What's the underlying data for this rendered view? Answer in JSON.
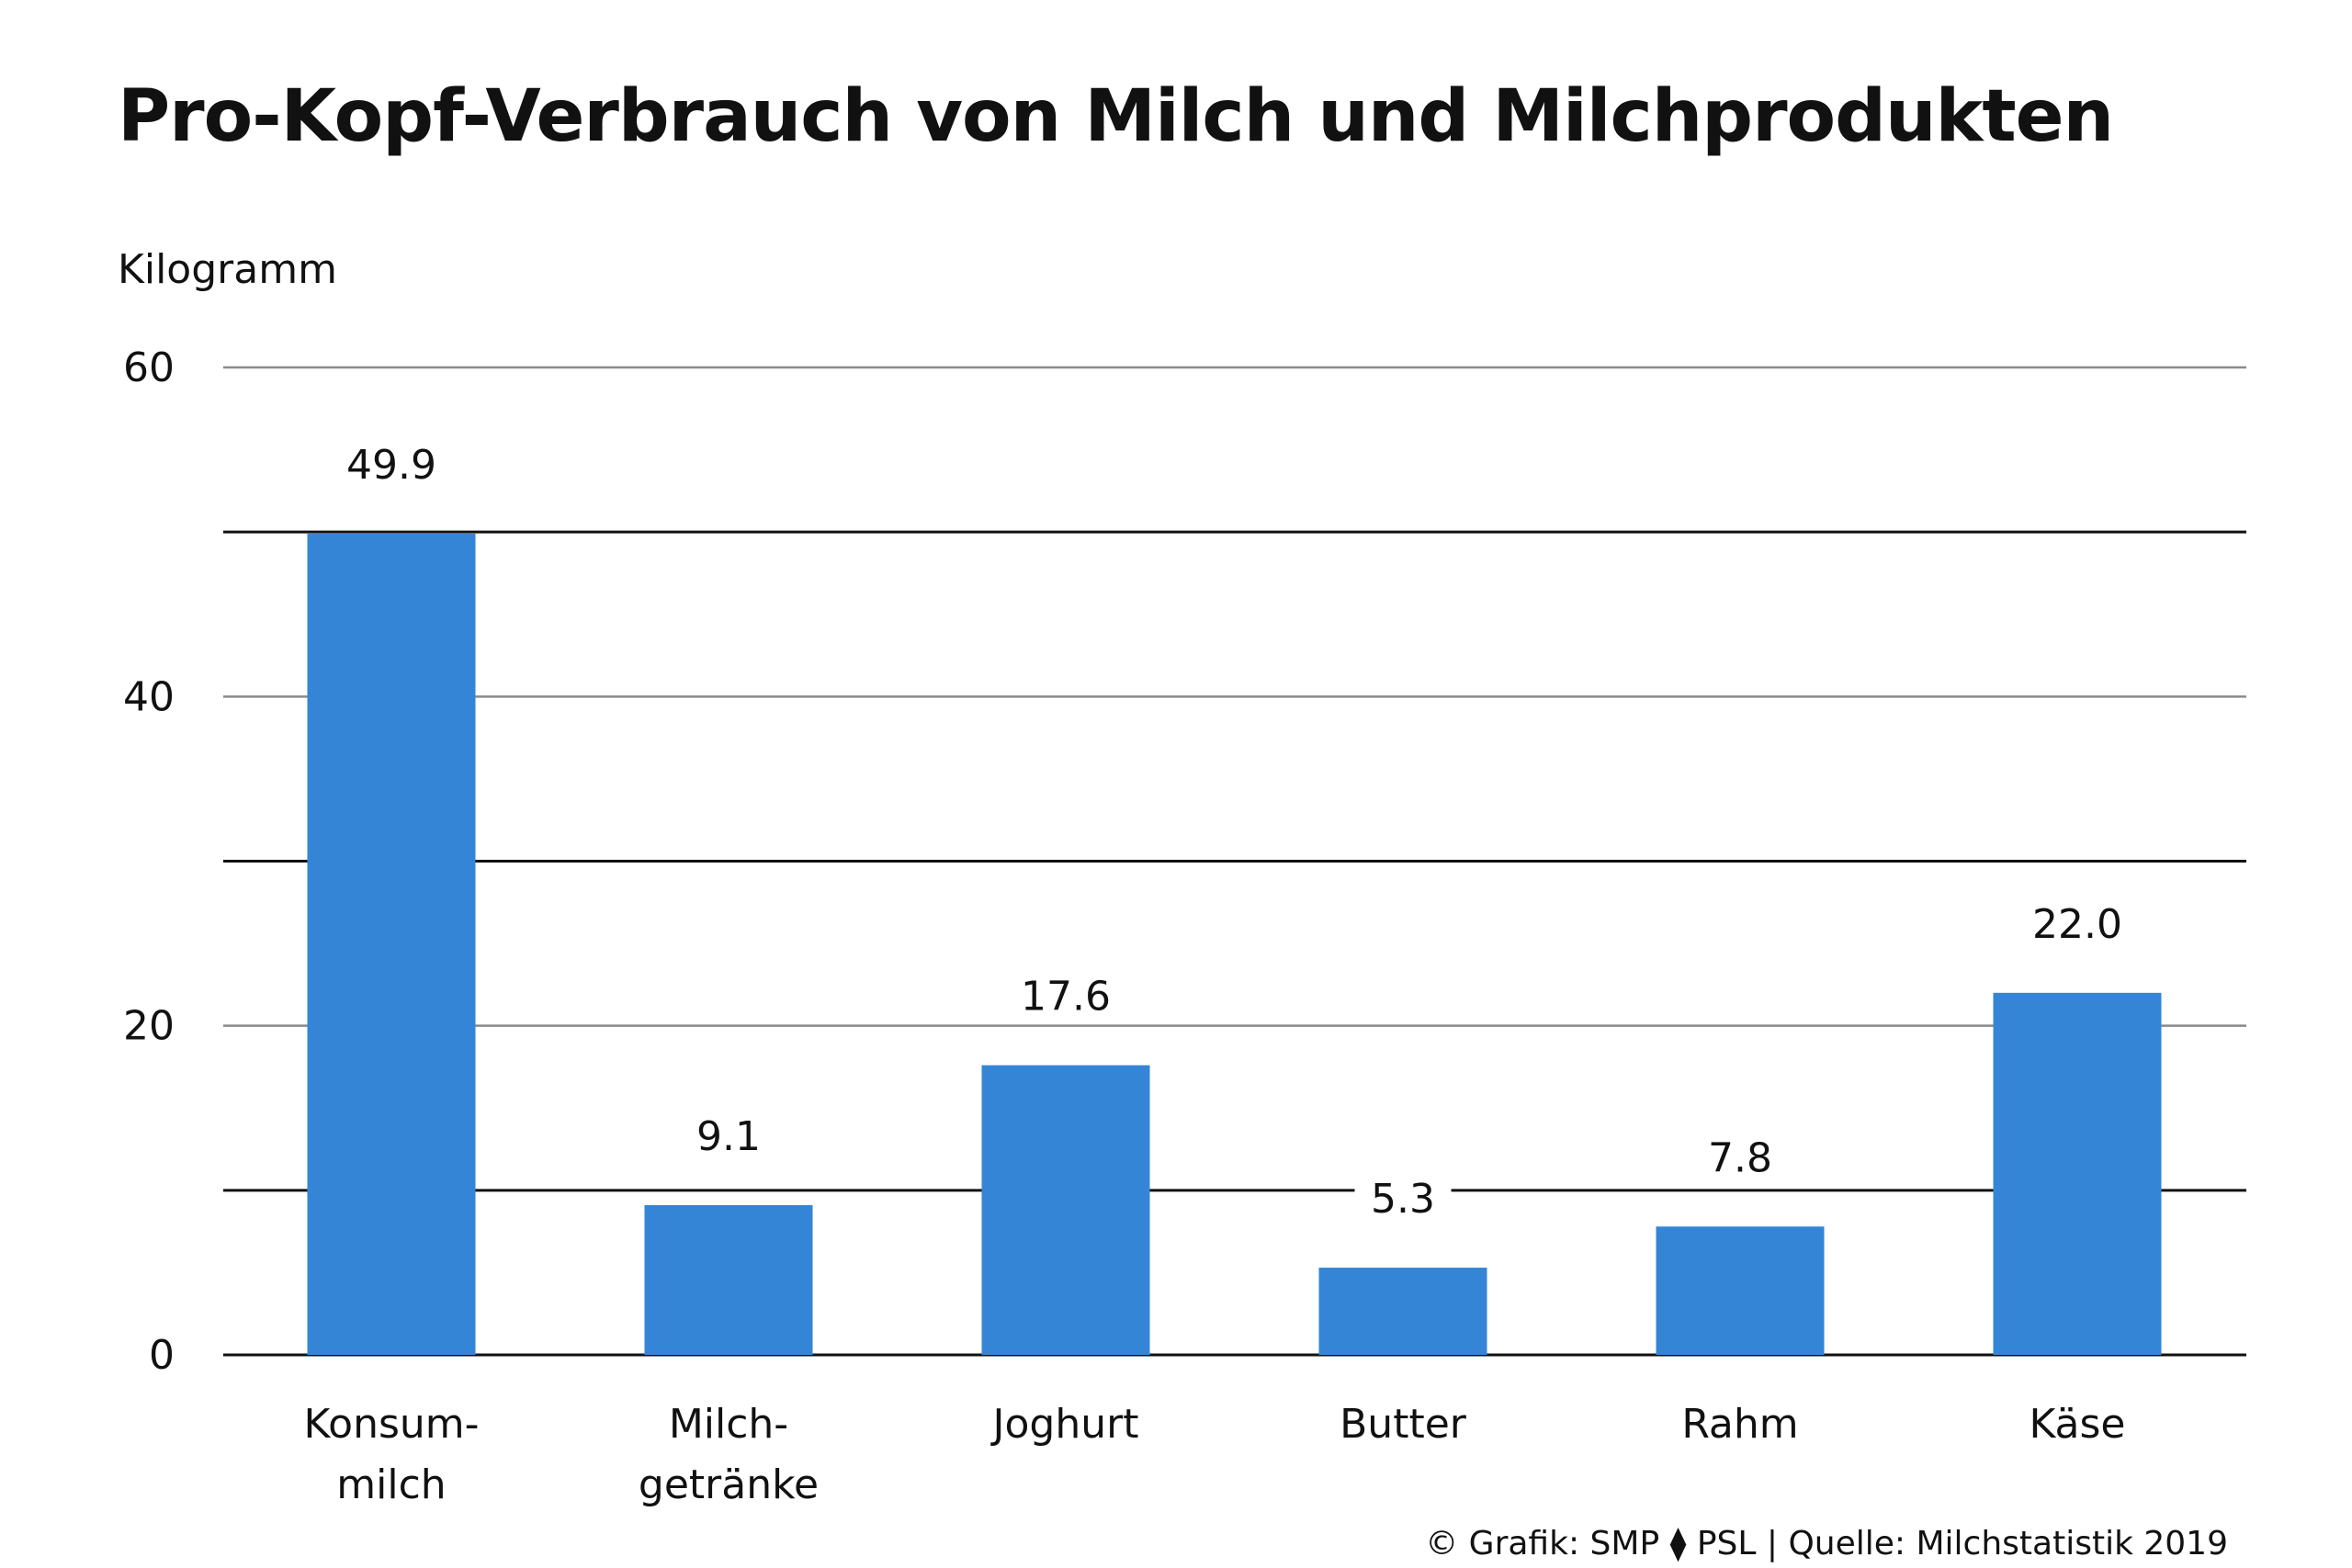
{
  "header": {
    "title": "Pro-Kopf-Verbrauch von Milch und Milchprodukten"
  },
  "axis": {
    "unit": "Kilogramm"
  },
  "footer": {
    "credit": "© Grafik: SMP ⧫ PSL | Quelle: Milchstatistik 2019"
  },
  "colors": {
    "bar": "#3585d6",
    "grid": "#8a8a8a",
    "grid_strong": "#111111"
  },
  "chart_data": {
    "type": "bar",
    "categories": [
      [
        "Konsum-",
        "milch"
      ],
      [
        "Milch-",
        "getränke"
      ],
      [
        "Joghurt"
      ],
      [
        "Butter"
      ],
      [
        "Rahm"
      ],
      [
        "Käse"
      ]
    ],
    "values": [
      49.9,
      9.1,
      17.6,
      5.3,
      7.8,
      22.0
    ],
    "value_labels": [
      "49.9",
      "9.1",
      "17.6",
      "5.3",
      "7.8",
      "22.0"
    ],
    "ylabel": "Kilogramm",
    "ylim": [
      0,
      60
    ],
    "y_ticks": [
      0,
      20,
      40,
      60
    ],
    "gridlines": [
      0,
      10,
      20,
      30,
      40,
      50,
      60
    ],
    "grid": true,
    "legend": "none"
  }
}
